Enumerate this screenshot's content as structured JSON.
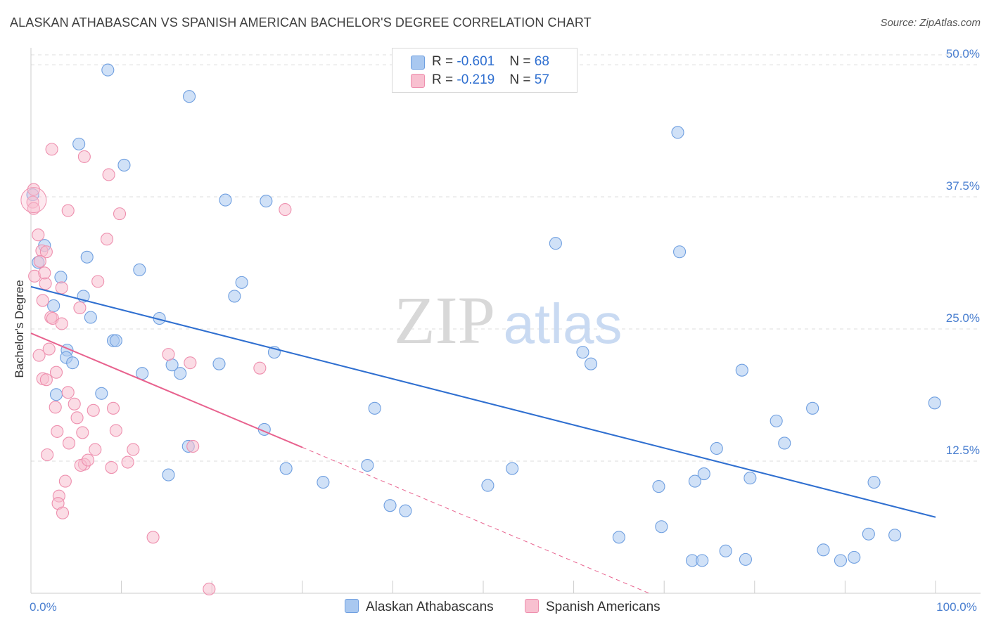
{
  "title": "ALASKAN ATHABASCAN VS SPANISH AMERICAN BACHELOR'S DEGREE CORRELATION CHART",
  "source": "Source: ZipAtlas.com",
  "watermark": {
    "zip": "ZIP",
    "atlas": "atlas"
  },
  "legend": {
    "rows": [
      {
        "r_label": "R = ",
        "r_value": "-0.601",
        "n_label": "N = ",
        "n_value": "68",
        "color": "#a9c8f0",
        "border": "#6f9fe0"
      },
      {
        "r_label": "R = ",
        "r_value": "-0.219",
        "n_label": "N = ",
        "n_value": "57",
        "color": "#f8c0d0",
        "border": "#ee8fae"
      }
    ]
  },
  "bottom_legend": [
    {
      "label": "Alaskan Athabascans",
      "color": "#a9c8f0",
      "border": "#6f9fe0"
    },
    {
      "label": "Spanish Americans",
      "color": "#f8c0d0",
      "border": "#ee8fae"
    }
  ],
  "chart_data": {
    "type": "scatter",
    "title": "ALASKAN ATHABASCAN VS SPANISH AMERICAN BACHELOR'S DEGREE CORRELATION CHART",
    "xlabel": "",
    "ylabel": "Bachelor's Degree",
    "xlim": [
      0,
      100
    ],
    "ylim": [
      0,
      52
    ],
    "x_tick_labels": [
      {
        "value": 0,
        "label": "0.0%"
      },
      {
        "value": 100,
        "label": "100.0%"
      }
    ],
    "y_tick_labels": [
      {
        "value": 12.5,
        "label": "12.5%"
      },
      {
        "value": 25.0,
        "label": "25.0%"
      },
      {
        "value": 37.5,
        "label": "37.5%"
      },
      {
        "value": 50.0,
        "label": "50.0%"
      }
    ],
    "grid": true,
    "series": [
      {
        "name": "Alaskan Athabascans",
        "color": "#a9c8f0",
        "edge": "#6f9fe0",
        "line_color": "#2f6fd0",
        "trend": {
          "x1": 0,
          "y1": 29.0,
          "x2": 100,
          "y2": 7.2
        },
        "points": [
          [
            8.5,
            49.5
          ],
          [
            17.5,
            47.0
          ],
          [
            5.3,
            42.5
          ],
          [
            10.3,
            40.5
          ],
          [
            21.5,
            37.2
          ],
          [
            26.0,
            37.1
          ],
          [
            71.5,
            43.6
          ],
          [
            0.2,
            37.7
          ],
          [
            1.5,
            32.9
          ],
          [
            6.2,
            31.8
          ],
          [
            0.8,
            31.3
          ],
          [
            12.0,
            30.6
          ],
          [
            3.3,
            29.9
          ],
          [
            23.3,
            29.4
          ],
          [
            5.8,
            28.1
          ],
          [
            22.5,
            28.1
          ],
          [
            2.5,
            27.2
          ],
          [
            6.6,
            26.1
          ],
          [
            14.2,
            26.0
          ],
          [
            9.1,
            23.9
          ],
          [
            9.4,
            23.9
          ],
          [
            4.0,
            23.0
          ],
          [
            26.9,
            22.8
          ],
          [
            3.9,
            22.3
          ],
          [
            4.6,
            21.8
          ],
          [
            15.6,
            21.6
          ],
          [
            20.8,
            21.7
          ],
          [
            12.3,
            20.8
          ],
          [
            16.5,
            20.8
          ],
          [
            2.8,
            18.8
          ],
          [
            7.8,
            18.9
          ],
          [
            38.0,
            17.5
          ],
          [
            25.8,
            15.5
          ],
          [
            17.4,
            13.9
          ],
          [
            28.2,
            11.8
          ],
          [
            37.2,
            12.1
          ],
          [
            15.2,
            11.2
          ],
          [
            32.3,
            10.5
          ],
          [
            39.7,
            8.3
          ],
          [
            41.4,
            7.8
          ],
          [
            50.5,
            10.2
          ],
          [
            53.2,
            11.8
          ],
          [
            58.0,
            33.1
          ],
          [
            71.7,
            32.3
          ],
          [
            61.0,
            22.8
          ],
          [
            61.9,
            21.7
          ],
          [
            78.6,
            21.1
          ],
          [
            86.4,
            17.5
          ],
          [
            82.4,
            16.3
          ],
          [
            83.3,
            14.2
          ],
          [
            75.8,
            13.7
          ],
          [
            74.4,
            11.3
          ],
          [
            73.4,
            10.6
          ],
          [
            79.5,
            10.9
          ],
          [
            69.4,
            10.1
          ],
          [
            93.2,
            10.5
          ],
          [
            99.9,
            18.0
          ],
          [
            65.0,
            5.3
          ],
          [
            69.7,
            6.3
          ],
          [
            76.8,
            4.0
          ],
          [
            73.1,
            3.1
          ],
          [
            74.2,
            3.1
          ],
          [
            79.0,
            3.2
          ],
          [
            87.6,
            4.1
          ],
          [
            89.5,
            3.1
          ],
          [
            91.0,
            3.4
          ],
          [
            92.6,
            5.6
          ],
          [
            95.5,
            5.5
          ]
        ]
      },
      {
        "name": "Spanish Americans",
        "color": "#f8c0d0",
        "edge": "#ee8fae",
        "line_color": "#e8628e",
        "trend": {
          "x1": 0,
          "y1": 24.6,
          "x2": 30,
          "y2": 13.8
        },
        "trend_dashed": {
          "x1": 30,
          "y1": 13.8,
          "x2": 100,
          "y2": -11.4
        },
        "points": [
          [
            0.2,
            37.0
          ],
          [
            0.3,
            38.2
          ],
          [
            2.3,
            42.0
          ],
          [
            5.9,
            41.3
          ],
          [
            8.6,
            39.6
          ],
          [
            0.3,
            36.4
          ],
          [
            4.1,
            36.2
          ],
          [
            9.8,
            35.9
          ],
          [
            28.1,
            36.3
          ],
          [
            0.8,
            33.9
          ],
          [
            8.4,
            33.5
          ],
          [
            1.2,
            32.4
          ],
          [
            1.7,
            32.3
          ],
          [
            1.0,
            31.4
          ],
          [
            0.4,
            30.0
          ],
          [
            7.4,
            29.5
          ],
          [
            1.6,
            29.3
          ],
          [
            3.4,
            28.9
          ],
          [
            1.3,
            27.7
          ],
          [
            5.4,
            27.0
          ],
          [
            2.2,
            26.1
          ],
          [
            2.4,
            26.0
          ],
          [
            3.4,
            25.5
          ],
          [
            2.0,
            23.1
          ],
          [
            0.9,
            22.5
          ],
          [
            15.2,
            22.6
          ],
          [
            17.6,
            21.8
          ],
          [
            25.3,
            21.3
          ],
          [
            2.8,
            20.9
          ],
          [
            1.3,
            20.3
          ],
          [
            1.7,
            20.2
          ],
          [
            4.1,
            19.0
          ],
          [
            4.8,
            17.9
          ],
          [
            2.7,
            17.6
          ],
          [
            6.9,
            17.3
          ],
          [
            9.1,
            17.5
          ],
          [
            5.1,
            16.6
          ],
          [
            2.9,
            15.3
          ],
          [
            5.7,
            15.2
          ],
          [
            9.4,
            15.4
          ],
          [
            4.2,
            14.2
          ],
          [
            7.1,
            13.6
          ],
          [
            11.3,
            13.6
          ],
          [
            1.8,
            13.1
          ],
          [
            5.9,
            12.2
          ],
          [
            5.5,
            12.1
          ],
          [
            6.3,
            12.6
          ],
          [
            10.7,
            12.4
          ],
          [
            8.9,
            11.9
          ],
          [
            3.8,
            10.6
          ],
          [
            3.1,
            9.2
          ],
          [
            3.0,
            8.5
          ],
          [
            3.5,
            7.6
          ],
          [
            13.5,
            5.3
          ],
          [
            17.9,
            13.9
          ],
          [
            19.7,
            0.4
          ],
          [
            1.5,
            30.3
          ]
        ]
      }
    ]
  }
}
